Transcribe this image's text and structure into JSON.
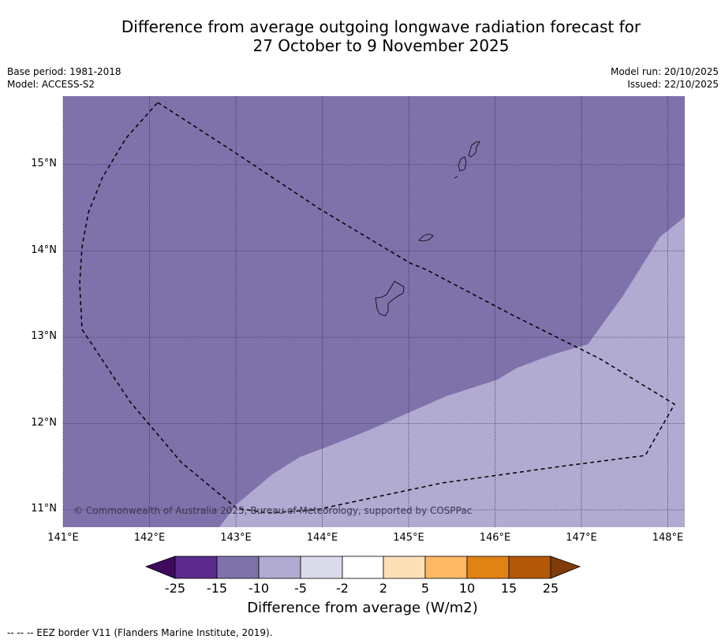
{
  "title": {
    "line1": "Difference from average outgoing longwave radiation forecast for",
    "line2": "27 October to 9 November 2025"
  },
  "meta": {
    "base_period": "Base period: 1981-2018",
    "model": "Model: ACCESS-S2",
    "model_run": "Model run: 20/10/2025",
    "issued": "Issued: 22/10/2025"
  },
  "map": {
    "lon_range": [
      141.0,
      148.2
    ],
    "lat_range": [
      10.8,
      15.8
    ],
    "lat_ticks": [
      "15°N",
      "14°N",
      "13°N",
      "12°N",
      "11°N"
    ],
    "lon_ticks": [
      "141°E",
      "142°E",
      "143°E",
      "144°E",
      "145°E",
      "146°E",
      "147°E",
      "148°E"
    ],
    "regions": [
      {
        "name": "-15 to -10",
        "color": "#7f72ab"
      },
      {
        "name": "-10 to -5",
        "color": "#b1aad1"
      }
    ],
    "copyright": "© Commonwealth of Australia 2025, Bureau of Meteorology, supported by COSPPac"
  },
  "colorbar": {
    "colors": [
      "#3f0a5e",
      "#5b2a8c",
      "#7f72ab",
      "#b1aad1",
      "#dadaeb",
      "#ffffff",
      "#fee0b6",
      "#fdb863",
      "#e08214",
      "#b35806",
      "#7f3b08"
    ],
    "ticks": [
      "-25",
      "-15",
      "-10",
      "-5",
      "-2",
      "2",
      "5",
      "10",
      "15",
      "25"
    ],
    "label": "Difference from average (W/m2)"
  },
  "footnote": "--  --  -- EEZ border V11 (Flanders Marine Institute, 2019)."
}
